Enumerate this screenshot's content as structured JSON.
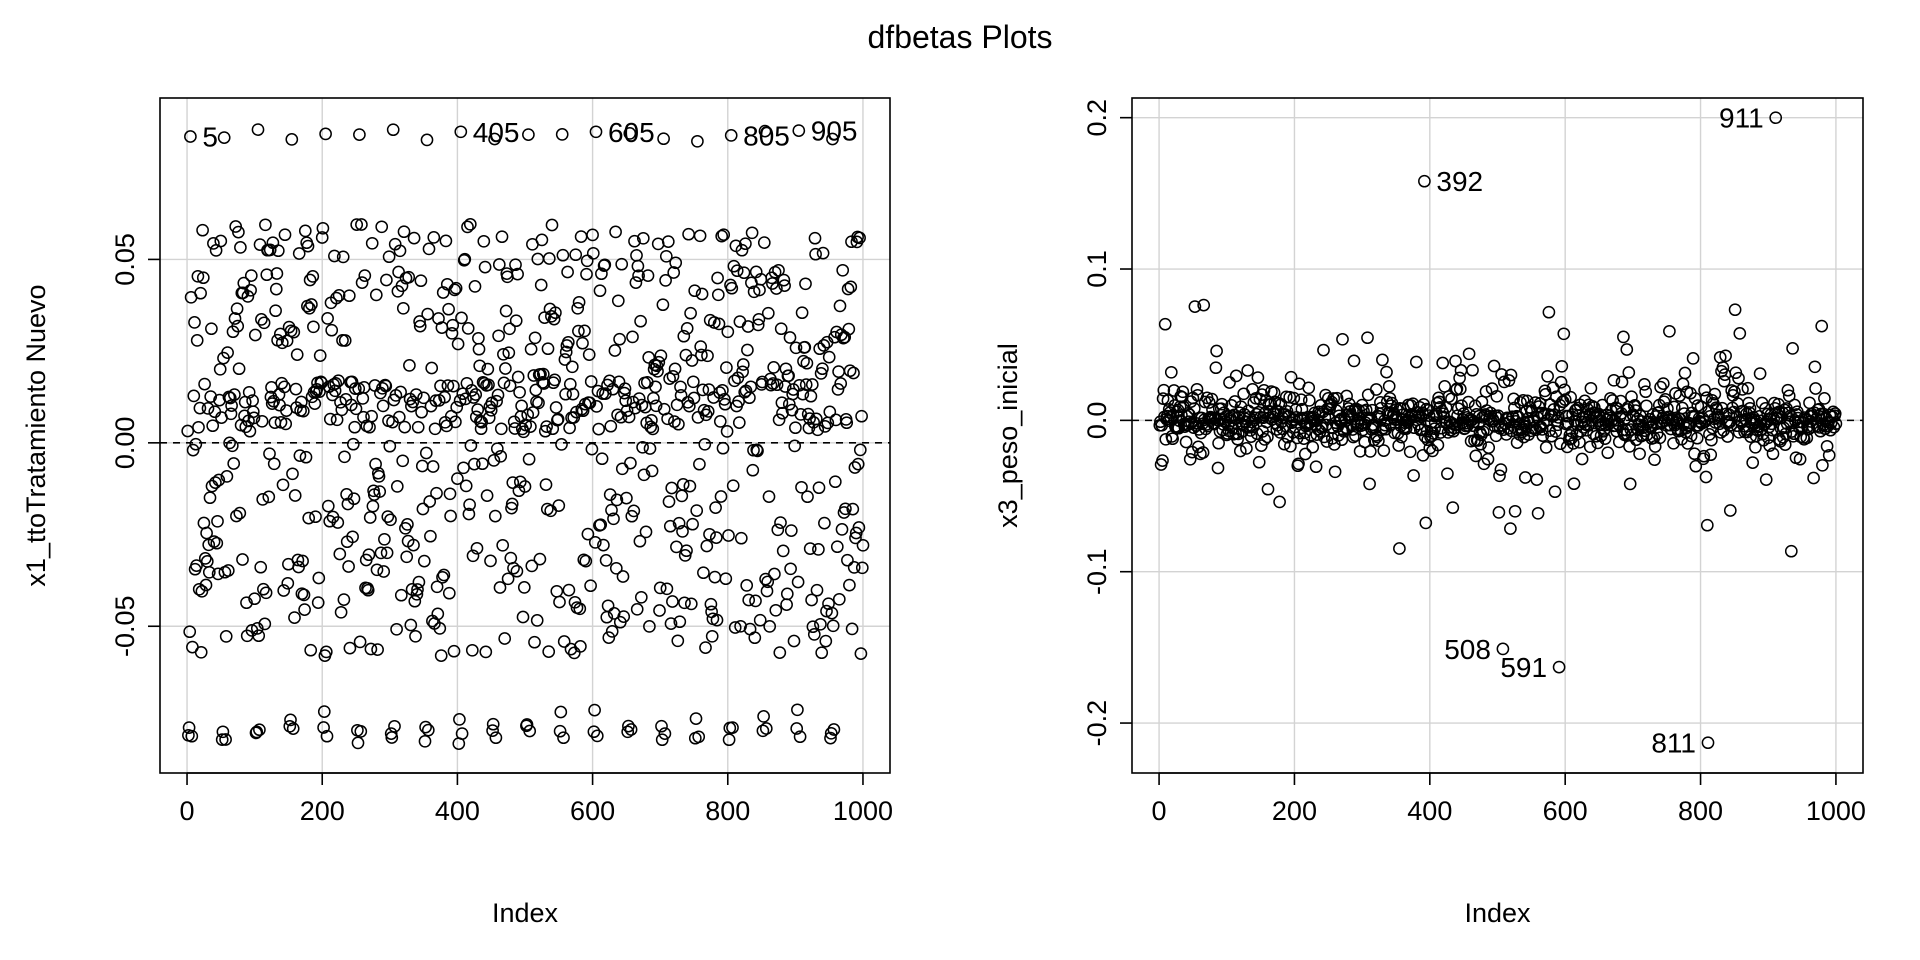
{
  "title": "dfbetas Plots",
  "chart_data": [
    {
      "type": "scatter",
      "xlabel": "Index",
      "ylabel": "x1_ttoTratamiento Nuevo",
      "xlim": [
        -40,
        1040
      ],
      "ylim": [
        -0.09,
        0.094
      ],
      "xticks": [
        0,
        200,
        400,
        600,
        800,
        1000
      ],
      "xtick_labels": [
        "0",
        "200",
        "400",
        "600",
        "800",
        "1000"
      ],
      "yticks": [
        -0.05,
        0.0,
        0.05
      ],
      "ytick_labels": [
        "-0.05",
        "0.00",
        "0.05"
      ],
      "grid": true,
      "reference_line": 0,
      "n_points": 1000,
      "pattern": "dfbetas for the treatment coefficient cycle in repeating blocks of 100 indices; most values between -0.06 and 0.06, with clusters near -0.08 and near 0.083",
      "highlighted_points": [
        {
          "label": "5",
          "x": 5,
          "y": 0.0835
        },
        {
          "label": "405",
          "x": 405,
          "y": 0.0848
        },
        {
          "label": "605",
          "x": 605,
          "y": 0.0848
        },
        {
          "label": "805",
          "x": 805,
          "y": 0.0838
        },
        {
          "label": "905",
          "x": 905,
          "y": 0.0851
        }
      ]
    },
    {
      "type": "scatter",
      "xlabel": "Index",
      "ylabel": "x3_peso_inicial",
      "xlim": [
        -40,
        1040
      ],
      "ylim": [
        -0.233,
        0.213
      ],
      "xticks": [
        0,
        200,
        400,
        600,
        800,
        1000
      ],
      "xtick_labels": [
        "0",
        "200",
        "400",
        "600",
        "800",
        "1000"
      ],
      "yticks": [
        -0.2,
        -0.1,
        0.0,
        0.1,
        0.2
      ],
      "ytick_labels": [
        "-0.2",
        "-0.1",
        "0.0",
        "0.1",
        "0.2"
      ],
      "grid": true,
      "reference_line": 0,
      "n_points": 1000,
      "pattern": "dfbetas for initial weight concentrated near 0 (mostly within ±0.05) with occasional larger values",
      "highlighted_points": [
        {
          "label": "911",
          "x": 911,
          "y": 0.2
        },
        {
          "label": "392",
          "x": 392,
          "y": 0.158
        },
        {
          "label": "508",
          "x": 508,
          "y": -0.151
        },
        {
          "label": "591",
          "x": 591,
          "y": -0.163
        },
        {
          "label": "811",
          "x": 811,
          "y": -0.213
        }
      ]
    }
  ]
}
